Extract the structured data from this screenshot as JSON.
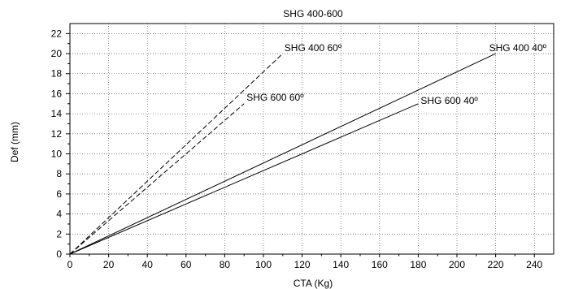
{
  "chart_data": {
    "type": "line",
    "title": "SHG 400-600",
    "xlabel": "CTA (Kg)",
    "ylabel": "Def (mm)",
    "xlim": [
      0,
      250
    ],
    "ylim": [
      0,
      23
    ],
    "x_ticks": [
      0,
      20,
      40,
      60,
      80,
      100,
      120,
      140,
      160,
      180,
      200,
      220,
      240
    ],
    "y_ticks": [
      0,
      2,
      4,
      6,
      8,
      10,
      12,
      14,
      16,
      18,
      20,
      22
    ],
    "grid": true,
    "series": [
      {
        "name": "SHG 400 60º",
        "style": "dashed",
        "x": [
          0,
          110
        ],
        "y": [
          0,
          20
        ]
      },
      {
        "name": "SHG 600 60º",
        "style": "dashed",
        "x": [
          0,
          90
        ],
        "y": [
          0,
          15
        ]
      },
      {
        "name": "SHG 400 40º",
        "style": "solid",
        "x": [
          0,
          220
        ],
        "y": [
          0,
          20
        ]
      },
      {
        "name": "SHG 600 40º",
        "style": "solid",
        "x": [
          0,
          180
        ],
        "y": [
          0,
          15
        ]
      }
    ]
  }
}
